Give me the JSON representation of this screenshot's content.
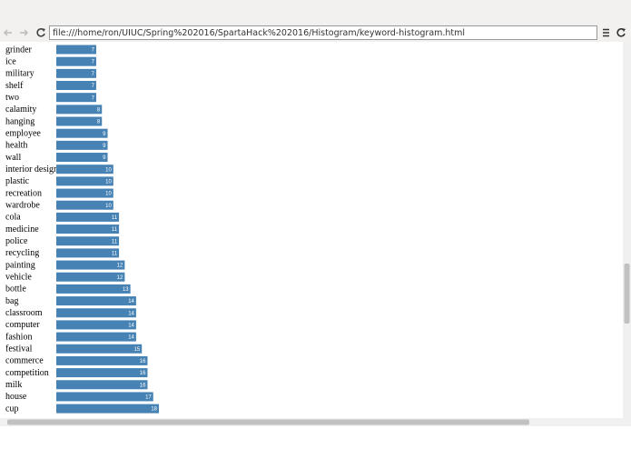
{
  "browser": {
    "url": "file:///home/ron/UIUC/Spring%202016/SpartaHack%202016/Histogram/keyword-histogram.html"
  },
  "chart_data": {
    "type": "bar",
    "orientation": "horizontal",
    "color": "#4682b4",
    "categories": [
      "grinder",
      "ice",
      "military",
      "shelf",
      "two",
      "calamity",
      "hanging",
      "employee",
      "health",
      "wall",
      "interior design",
      "plastic",
      "recreation",
      "wardrobe",
      "cola",
      "medicine",
      "police",
      "recycling",
      "painting",
      "vehicle",
      "bottle",
      "bag",
      "classroom",
      "computer",
      "fashion",
      "festival",
      "commerce",
      "competition",
      "milk",
      "house",
      "cup"
    ],
    "values": [
      7,
      7,
      7,
      7,
      7,
      8,
      8,
      9,
      9,
      9,
      10,
      10,
      10,
      10,
      11,
      11,
      11,
      11,
      12,
      12,
      13,
      14,
      14,
      14,
      14,
      15,
      16,
      16,
      16,
      17,
      18
    ]
  }
}
